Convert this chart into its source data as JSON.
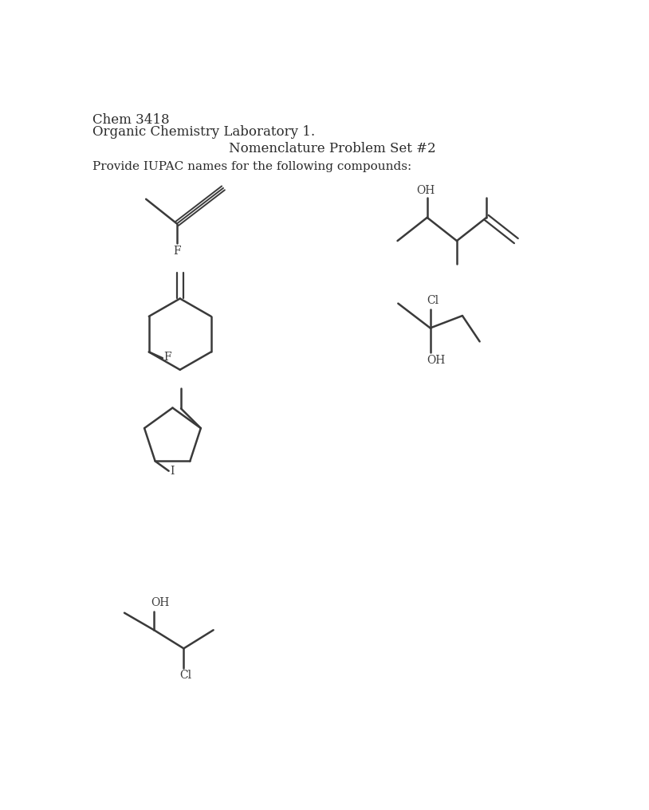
{
  "title_line1": "Chem 3418",
  "title_line2": "Organic Chemistry Laboratory 1.",
  "center_title": "Nomenclature Problem Set #2",
  "instruction": "Provide IUPAC names for the following compounds:",
  "bg_color": "#ffffff",
  "line_color": "#3a3a3a",
  "text_color": "#2a2a2a",
  "font_size_header": 12,
  "font_size_body": 11,
  "font_size_label": 10
}
